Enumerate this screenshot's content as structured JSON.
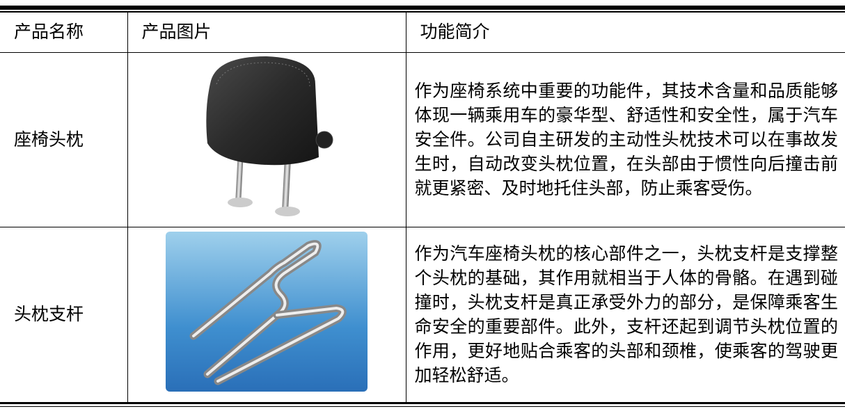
{
  "table": {
    "header": [
      "产品名称",
      "产品图片",
      "功能简介"
    ],
    "rows": [
      [
        "座椅头枕",
        "作为座椅系统中重要的功能件，其技术含量和品质能够体现一辆乘用车的豪华型、舒适性和安全性，属于汽车安全件。公司自主研发的主动性头枕技术可以在事故发生时，自动改变头枕位置，在头部由于惯性向后撞击前就更紧密、及时地托住头部，防止乘客受伤。"
      ],
      [
        "头枕支杆",
        "作为汽车座椅头枕的核心部件之一，头枕支杆是支撑整个头枕的基础，其作用就相当于人体的骨骼。在遇到碰撞时，头枕支杆是真正承受外力的部分，是保障乘客生命安全的重要部件。此外，支杆还起到调节头枕位置的作用，更好地贴合乘客的头部和颈椎，使乘客的驾驶更加轻松舒适。"
      ]
    ]
  }
}
